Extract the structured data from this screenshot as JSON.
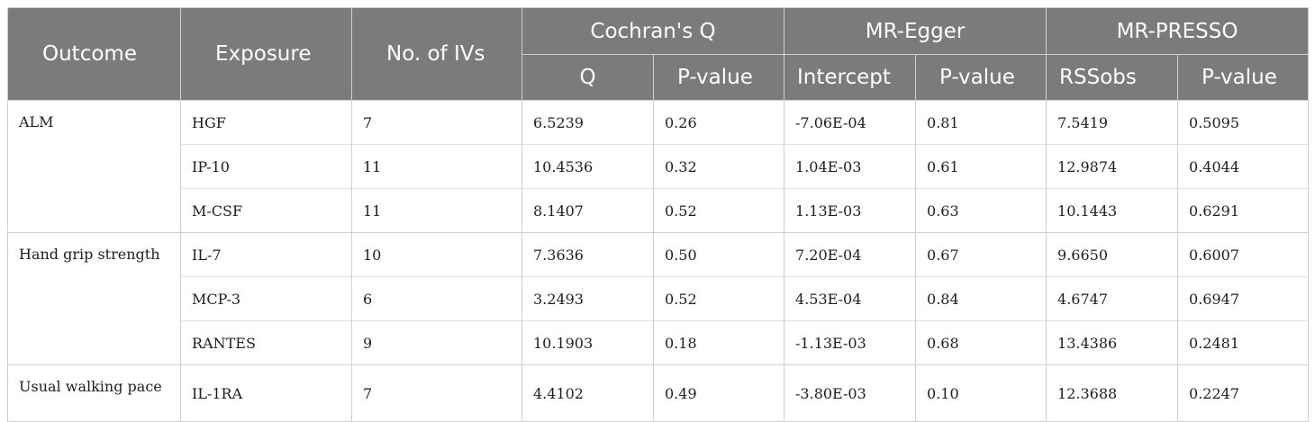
{
  "header": {
    "outcome": "Outcome",
    "exposure": "Exposure",
    "no_ivs": "No. of IVs",
    "cochran": "Cochran's Q",
    "egger": "MR-Egger",
    "presso": "MR-PRESSO",
    "q": "Q",
    "p1": "P-value",
    "intercept": "Intercept",
    "p2": "P-value",
    "rssobs": "RSSobs",
    "p3": "P-value"
  },
  "groups": [
    {
      "outcome": "ALM",
      "rows": [
        {
          "exposure": "HGF",
          "ivs": "7",
          "q": "6.5239",
          "q_p": "0.26",
          "intercept": "-7.06E-04",
          "egger_p": "0.81",
          "rssobs": "7.5419",
          "presso_p": "0.5095"
        },
        {
          "exposure": "IP-10",
          "ivs": "11",
          "q": "10.4536",
          "q_p": "0.32",
          "intercept": "1.04E-03",
          "egger_p": "0.61",
          "rssobs": "12.9874",
          "presso_p": "0.4044"
        },
        {
          "exposure": "M-CSF",
          "ivs": "11",
          "q": "8.1407",
          "q_p": "0.52",
          "intercept": "1.13E-03",
          "egger_p": "0.63",
          "rssobs": "10.1443",
          "presso_p": "0.6291"
        }
      ]
    },
    {
      "outcome": "Hand grip strength",
      "rows": [
        {
          "exposure": "IL-7",
          "ivs": "10",
          "q": "7.3636",
          "q_p": "0.50",
          "intercept": "7.20E-04",
          "egger_p": "0.67",
          "rssobs": "9.6650",
          "presso_p": "0.6007"
        },
        {
          "exposure": "MCP-3",
          "ivs": "6",
          "q": "3.2493",
          "q_p": "0.52",
          "intercept": "4.53E-04",
          "egger_p": "0.84",
          "rssobs": "4.6747",
          "presso_p": "0.6947"
        },
        {
          "exposure": "RANTES",
          "ivs": "9",
          "q": "10.1903",
          "q_p": "0.18",
          "intercept": "-1.13E-03",
          "egger_p": "0.68",
          "rssobs": "13.4386",
          "presso_p": "0.2481"
        }
      ]
    },
    {
      "outcome": "Usual walking pace",
      "rows": [
        {
          "exposure": "IL-1RA",
          "ivs": "7",
          "q": "4.4102",
          "q_p": "0.49",
          "intercept": "-3.80E-03",
          "egger_p": "0.10",
          "rssobs": "12.3688",
          "presso_p": "0.2247"
        }
      ]
    }
  ]
}
